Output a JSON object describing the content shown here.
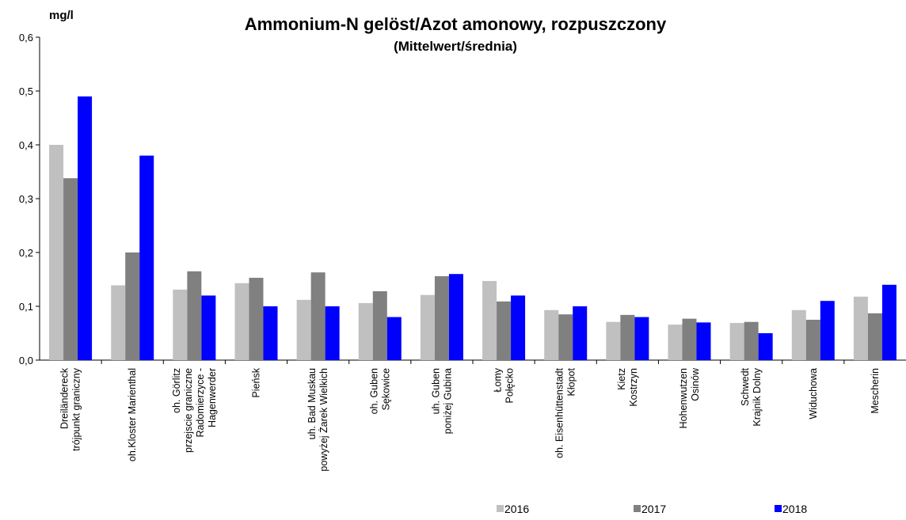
{
  "chart_data": {
    "type": "bar",
    "title": "Ammonium-N gelöst/Azot amonowy, rozpuszczony",
    "subtitle": "(Mittelwert/średnia)",
    "y_label": "mg/l",
    "categories": [
      [
        "Dreiländereck",
        "trójpunkt graniczny"
      ],
      [
        "oh.Kloster Marienthal"
      ],
      [
        "oh. Görlitz",
        "przejscie graniczne",
        "Radomierzyce -",
        "Hagenwerder"
      ],
      [
        "Pieńsk"
      ],
      [
        "uh. Bad Muskau",
        "powyżej Żarek Wielkich"
      ],
      [
        "oh. Guben",
        "Sękowice"
      ],
      [
        "uh. Guben",
        "poniżej Gubina"
      ],
      [
        "Łomy",
        "Połęcko"
      ],
      [
        "oh. Eisenhüttenstadt",
        "Kłopot"
      ],
      [
        "Kietz",
        "Kostrzyn"
      ],
      [
        "Hohenwutzen",
        "Osinów"
      ],
      [
        "Schwedt",
        "Krajnik Dolny"
      ],
      [
        "Widuchowa"
      ],
      [
        "Mescherin"
      ]
    ],
    "series": [
      {
        "name": "2016",
        "color": "#c0c0c0",
        "values": [
          0.4,
          0.139,
          0.131,
          0.143,
          0.112,
          0.106,
          0.121,
          0.147,
          0.093,
          0.071,
          0.066,
          0.069,
          0.093,
          0.118
        ]
      },
      {
        "name": "2017",
        "color": "#808080",
        "values": [
          0.338,
          0.2,
          0.165,
          0.153,
          0.163,
          0.128,
          0.156,
          0.109,
          0.085,
          0.084,
          0.077,
          0.071,
          0.075,
          0.087
        ]
      },
      {
        "name": "2018",
        "color": "#0000ff",
        "values": [
          0.49,
          0.38,
          0.12,
          0.1,
          0.1,
          0.08,
          0.16,
          0.12,
          0.1,
          0.08,
          0.07,
          0.05,
          0.11,
          0.14
        ]
      }
    ],
    "ylim": [
      0,
      0.6
    ],
    "yticks": [
      {
        "value": 0,
        "label": "0,0"
      },
      {
        "value": 0.1,
        "label": "0,1"
      },
      {
        "value": 0.2,
        "label": "0,2"
      },
      {
        "value": 0.3,
        "label": "0,3"
      },
      {
        "value": 0.4,
        "label": "0,4"
      },
      {
        "value": 0.5,
        "label": "0,5"
      },
      {
        "value": 0.6,
        "label": "0,6"
      }
    ],
    "grid": false,
    "legend": "bottom"
  }
}
